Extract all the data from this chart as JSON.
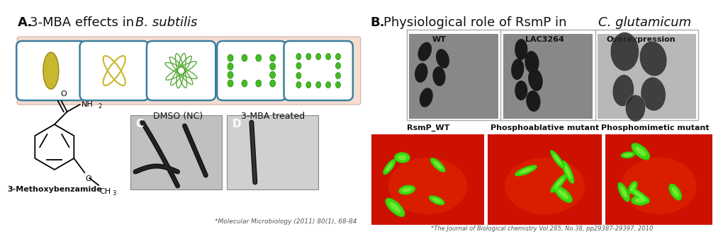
{
  "title_a_bold": "A.",
  "title_a_normal": " 3-MBA effects in ",
  "title_a_italic": "B. subtilis",
  "title_b_bold": "B.",
  "title_b_normal": " Physiological role of RsmP in ",
  "title_b_italic": "C. glutamicum",
  "dmso_label": "DMSO (NC)",
  "mba_label": "3-MBA treated",
  "wt_label": "WT",
  "lac_label": "LAC3264",
  "over_label": "Overexpression",
  "rsmP_label": "RsmP_WT",
  "phosphoab_label": "Phosphoablative mutant",
  "phosphomim_label": "Phosphomimetic mutant",
  "mol_chem_label": "3-Methoxybenzamide",
  "ref_a": "*Molecular Microbiology (2011) 80(1), 68-84",
  "ref_b": "*The Journal of Biological chemistry Vol.285, No.38, pp29387-29397, 2010",
  "bg_color": "#ffffff",
  "panel_a_bg": "#f5ddd0",
  "cell_edge_color": "#3a7fa0",
  "title_fontsize": 13,
  "label_fontsize": 8,
  "ref_fontsize": 7
}
